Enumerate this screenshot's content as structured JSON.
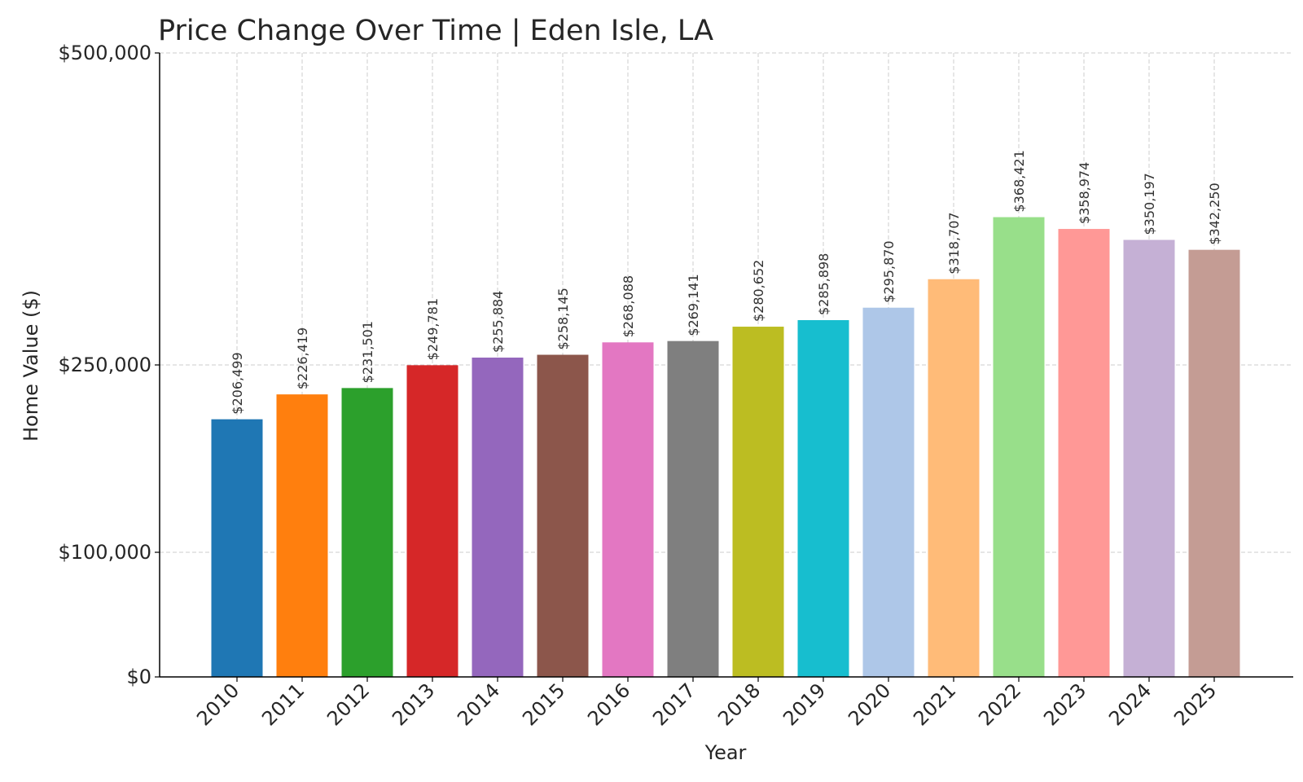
{
  "chart_data": {
    "type": "bar",
    "title": "Price Change Over Time | Eden Isle, LA",
    "xlabel": "Year",
    "ylabel": "Home Value ($)",
    "categories": [
      "2010",
      "2011",
      "2012",
      "2013",
      "2014",
      "2015",
      "2016",
      "2017",
      "2018",
      "2019",
      "2020",
      "2021",
      "2022",
      "2023",
      "2024",
      "2025"
    ],
    "values": [
      206499,
      226419,
      231501,
      249781,
      255884,
      258145,
      268088,
      269141,
      280652,
      285898,
      295870,
      318707,
      368421,
      358974,
      350197,
      342250
    ],
    "data_labels": [
      "$206,499",
      "$226,419",
      "$231,501",
      "$249,781",
      "$255,884",
      "$258,145",
      "$268,088",
      "$269,141",
      "$280,652",
      "$285,898",
      "$295,870",
      "$318,707",
      "$368,421",
      "$358,974",
      "$350,197",
      "$342,250"
    ],
    "colors": [
      "#1f77b4",
      "#ff7f0e",
      "#2ca02c",
      "#d62728",
      "#9467bd",
      "#8c564b",
      "#e377c2",
      "#7f7f7f",
      "#bcbd22",
      "#17becf",
      "#aec7e8",
      "#ffbb78",
      "#98df8a",
      "#ff9896",
      "#c5b0d5",
      "#c49c94"
    ],
    "yticks": [
      0,
      100000,
      250000,
      500000
    ],
    "ytick_labels": [
      "$0",
      "$100,000",
      "$250,000",
      "$500,000"
    ],
    "ylim": [
      0,
      500000
    ],
    "grid": true,
    "legend": "none"
  }
}
